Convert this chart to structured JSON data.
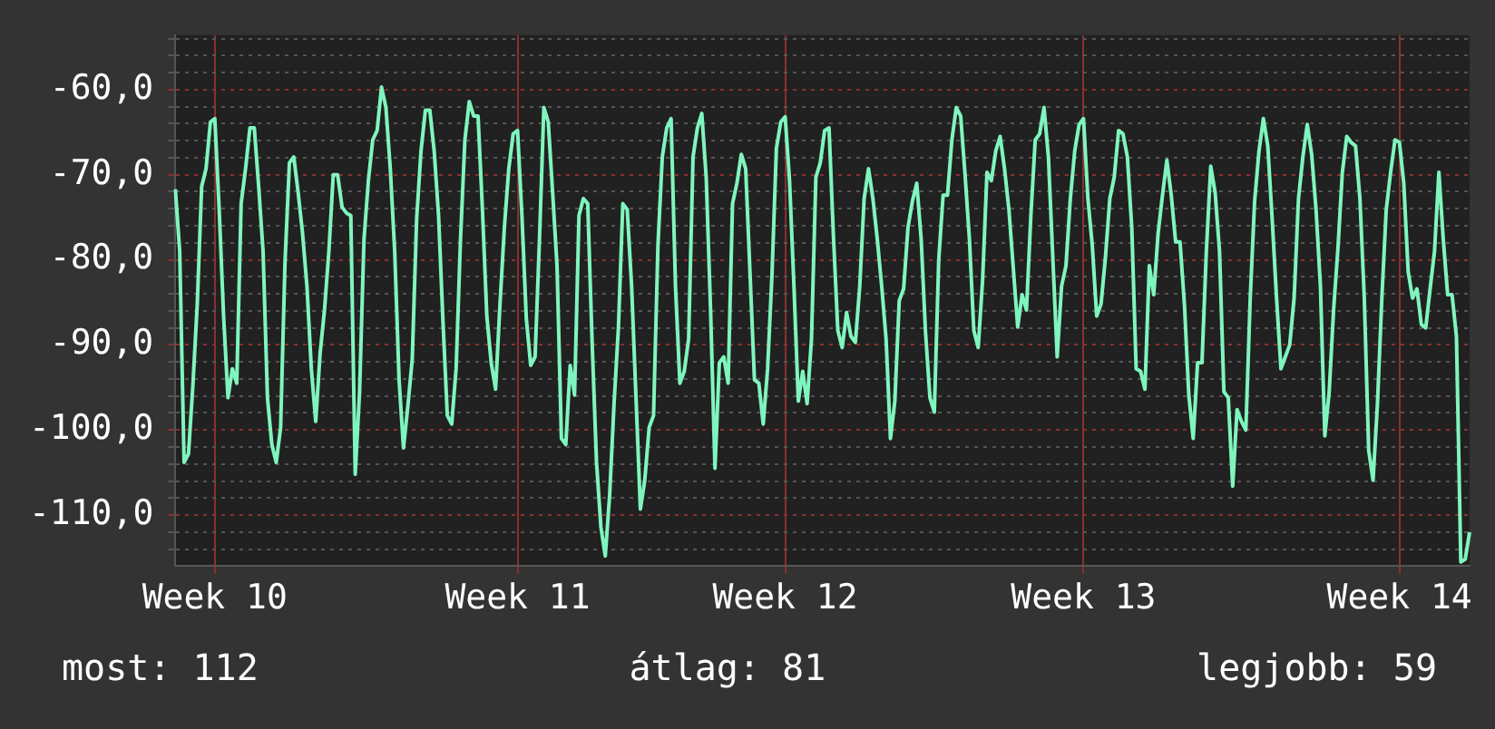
{
  "chart_data": {
    "type": "line",
    "ylim": [
      -116,
      -53.6
    ],
    "categories": [
      null,
      null,
      null,
      null,
      null,
      null,
      null,
      null,
      null,
      "Week 10",
      null,
      null,
      null,
      null,
      null,
      null,
      null,
      null,
      null,
      null,
      null,
      null,
      null,
      null,
      null,
      null,
      null,
      null,
      null,
      null,
      null,
      null,
      null,
      null,
      null,
      null,
      null,
      null,
      null,
      null,
      null,
      null,
      null,
      null,
      null,
      null,
      null,
      null,
      null,
      null,
      null,
      null,
      null,
      null,
      null,
      null,
      null,
      null,
      null,
      null,
      null,
      null,
      null,
      null,
      null,
      null,
      null,
      null,
      null,
      null,
      null,
      null,
      null,
      null,
      null,
      null,
      null,
      null,
      "Week 11",
      null,
      null,
      null,
      null,
      null,
      null,
      null,
      null,
      null,
      null,
      null,
      null,
      null,
      null,
      null,
      null,
      null,
      null,
      null,
      null,
      null,
      null,
      null,
      null,
      null,
      null,
      null,
      null,
      null,
      null,
      null,
      null,
      null,
      null,
      null,
      null,
      null,
      null,
      null,
      null,
      null,
      null,
      null,
      null,
      null,
      null,
      null,
      null,
      null,
      null,
      null,
      null,
      null,
      null,
      null,
      null,
      null,
      null,
      null,
      null,
      "Week 12",
      null,
      null,
      null,
      null,
      null,
      null,
      null,
      null,
      null,
      null,
      null,
      null,
      null,
      null,
      null,
      null,
      null,
      null,
      null,
      null,
      null,
      null,
      null,
      null,
      null,
      null,
      null,
      null,
      null,
      null,
      null,
      null,
      null,
      null,
      null,
      null,
      null,
      null,
      null,
      null,
      null,
      null,
      null,
      null,
      null,
      null,
      null,
      null,
      null,
      null,
      null,
      null,
      null,
      null,
      null,
      null,
      null,
      null,
      null,
      null,
      null,
      null,
      null,
      null,
      null,
      null,
      null,
      "Week 13",
      null,
      null,
      null,
      null,
      null,
      null,
      null,
      null,
      null,
      null,
      null,
      null,
      null,
      null,
      null,
      null,
      null,
      null,
      null,
      null,
      null,
      null,
      null,
      null,
      null,
      null,
      null,
      null,
      null,
      null,
      null,
      null,
      null,
      null,
      null,
      null,
      null,
      null,
      null,
      null,
      null,
      null,
      null,
      null,
      null,
      null,
      null,
      null,
      null,
      null,
      null,
      null,
      null,
      null,
      null,
      null,
      null,
      null,
      null,
      null,
      null,
      null,
      null,
      null,
      null,
      null,
      null,
      null,
      null,
      null,
      null,
      "Week 14",
      null,
      null,
      null,
      null,
      null,
      null,
      null,
      null,
      null,
      null,
      null,
      null,
      null,
      null,
      null,
      null
    ],
    "yticks": [
      {
        "value": -114,
        "label": null
      },
      {
        "value": -112,
        "label": null
      },
      {
        "value": -110,
        "label": "-110,0"
      },
      {
        "value": -108,
        "label": null
      },
      {
        "value": -106,
        "label": null
      },
      {
        "value": -104,
        "label": null
      },
      {
        "value": -102,
        "label": null
      },
      {
        "value": -100,
        "label": "-100,0"
      },
      {
        "value": -98,
        "label": null
      },
      {
        "value": -96,
        "label": null
      },
      {
        "value": -94,
        "label": null
      },
      {
        "value": -92,
        "label": null
      },
      {
        "value": -90,
        "label": "-90,0"
      },
      {
        "value": -88,
        "label": null
      },
      {
        "value": -86,
        "label": null
      },
      {
        "value": -84,
        "label": null
      },
      {
        "value": -82,
        "label": null
      },
      {
        "value": -80,
        "label": "-80,0"
      },
      {
        "value": -78,
        "label": null
      },
      {
        "value": -76,
        "label": null
      },
      {
        "value": -74,
        "label": null
      },
      {
        "value": -72,
        "label": null
      },
      {
        "value": -70,
        "label": "-70,0"
      },
      {
        "value": -68,
        "label": null
      },
      {
        "value": -66,
        "label": null
      },
      {
        "value": -64,
        "label": null
      },
      {
        "value": -62,
        "label": null
      },
      {
        "value": -60,
        "label": "-60,0"
      },
      {
        "value": -58,
        "label": null
      },
      {
        "value": -56,
        "label": null
      },
      {
        "value": -54,
        "label": null
      }
    ],
    "grid": true,
    "legend": false,
    "marker": "none",
    "line_style": "solid",
    "annotations": [
      "most: 112",
      "átlag: 81",
      "legjobb: 59"
    ],
    "series": [
      {
        "color": "#7ff5be",
        "values": [
          -71.7,
          -79,
          -103.8,
          -102.8,
          -94.8,
          -85.2,
          -71.4,
          -69.3,
          -63.8,
          -63.4,
          -74.1,
          -86.6,
          -96.2,
          -92.8,
          -94.5,
          -73.4,
          -69.3,
          -64.5,
          -64.5,
          -71.4,
          -79,
          -96.2,
          -101.7,
          -103.8,
          -99.7,
          -80.3,
          -68.6,
          -67.9,
          -72.1,
          -76.9,
          -83.1,
          -92.8,
          -99,
          -91,
          -85.9,
          -79,
          -70,
          -70,
          -73.8,
          -74.5,
          -74.8,
          -105.2,
          -95.5,
          -77.6,
          -70.7,
          -65.9,
          -64.8,
          -59.7,
          -62.1,
          -69.3,
          -79,
          -94.1,
          -102.1,
          -97.2,
          -91.7,
          -75.2,
          -67.2,
          -62.4,
          -62.4,
          -67.2,
          -74.8,
          -87.2,
          -98.3,
          -99.3,
          -92.8,
          -77.6,
          -65.9,
          -61.4,
          -63.1,
          -63.1,
          -74.1,
          -86.6,
          -92.1,
          -95.2,
          -85.2,
          -76.2,
          -69.3,
          -65.2,
          -64.8,
          -74.8,
          -86.9,
          -92.4,
          -91.4,
          -77.6,
          -62.1,
          -63.8,
          -72.1,
          -80.7,
          -101,
          -101.7,
          -92.4,
          -95.9,
          -74.8,
          -72.8,
          -73.4,
          -89.7,
          -103.8,
          -111.4,
          -114.8,
          -107.6,
          -96.9,
          -87.9,
          -73.4,
          -74.1,
          -83.1,
          -96.2,
          -109.3,
          -105.9,
          -99.7,
          -98.3,
          -78.3,
          -67.9,
          -64.5,
          -63.4,
          -83.1,
          -94.5,
          -93.1,
          -89.3,
          -67.9,
          -64.5,
          -62.8,
          -70.3,
          -85.9,
          -104.5,
          -92.1,
          -91.4,
          -94.5,
          -73.4,
          -71,
          -67.6,
          -69.3,
          -81.7,
          -94.1,
          -94.5,
          -99.3,
          -92.8,
          -81.7,
          -66.9,
          -63.8,
          -63.2,
          -70.7,
          -83.1,
          -96.6,
          -93.1,
          -96.9,
          -89.3,
          -70.3,
          -68.6,
          -64.8,
          -64.5,
          -77.2,
          -88.3,
          -90.3,
          -86.2,
          -89,
          -89.7,
          -83.1,
          -72.8,
          -69.3,
          -72.8,
          -77.6,
          -83.1,
          -89.3,
          -101,
          -96.6,
          -84.8,
          -83.4,
          -76.2,
          -73.1,
          -71,
          -77.6,
          -88.6,
          -96.2,
          -97.9,
          -80,
          -72.4,
          -72.4,
          -65.9,
          -62.1,
          -63.1,
          -70,
          -77.6,
          -88.3,
          -90.3,
          -82.4,
          -69.7,
          -70.7,
          -67.2,
          -65.5,
          -69.3,
          -74.1,
          -81,
          -87.9,
          -84.1,
          -85.9,
          -74.8,
          -65.9,
          -65.2,
          -62.1,
          -67.9,
          -79.7,
          -91.4,
          -83.1,
          -80.7,
          -72.8,
          -67.2,
          -64.1,
          -63.4,
          -72.8,
          -78.3,
          -86.6,
          -85.2,
          -79.7,
          -72.8,
          -70.3,
          -64.8,
          -65.2,
          -67.9,
          -76.2,
          -92.8,
          -93.1,
          -95.2,
          -80.7,
          -84.1,
          -76.9,
          -72.4,
          -68.3,
          -72.4,
          -77.9,
          -77.9,
          -85.2,
          -95.9,
          -101,
          -92.1,
          -92.1,
          -79,
          -69,
          -72.1,
          -79,
          -95.5,
          -96.2,
          -106.6,
          -97.6,
          -99,
          -100,
          -84.5,
          -73.1,
          -67.2,
          -63.4,
          -66.6,
          -75.2,
          -84.5,
          -92.8,
          -91.4,
          -90,
          -84.5,
          -72.8,
          -67.9,
          -64.1,
          -67.6,
          -74.1,
          -83.1,
          -100.7,
          -95.5,
          -85.9,
          -78.6,
          -69.7,
          -65.5,
          -66.2,
          -66.6,
          -72.8,
          -84.5,
          -102.4,
          -105.9,
          -96.9,
          -84.5,
          -74.1,
          -69.7,
          -65.9,
          -66.2,
          -71,
          -81.4,
          -84.5,
          -83.4,
          -87.6,
          -88,
          -83.4,
          -79,
          -69.7,
          -77.6,
          -84.1,
          -84.1,
          -89,
          -115.5,
          -115.2,
          -112
        ]
      }
    ]
  }
}
